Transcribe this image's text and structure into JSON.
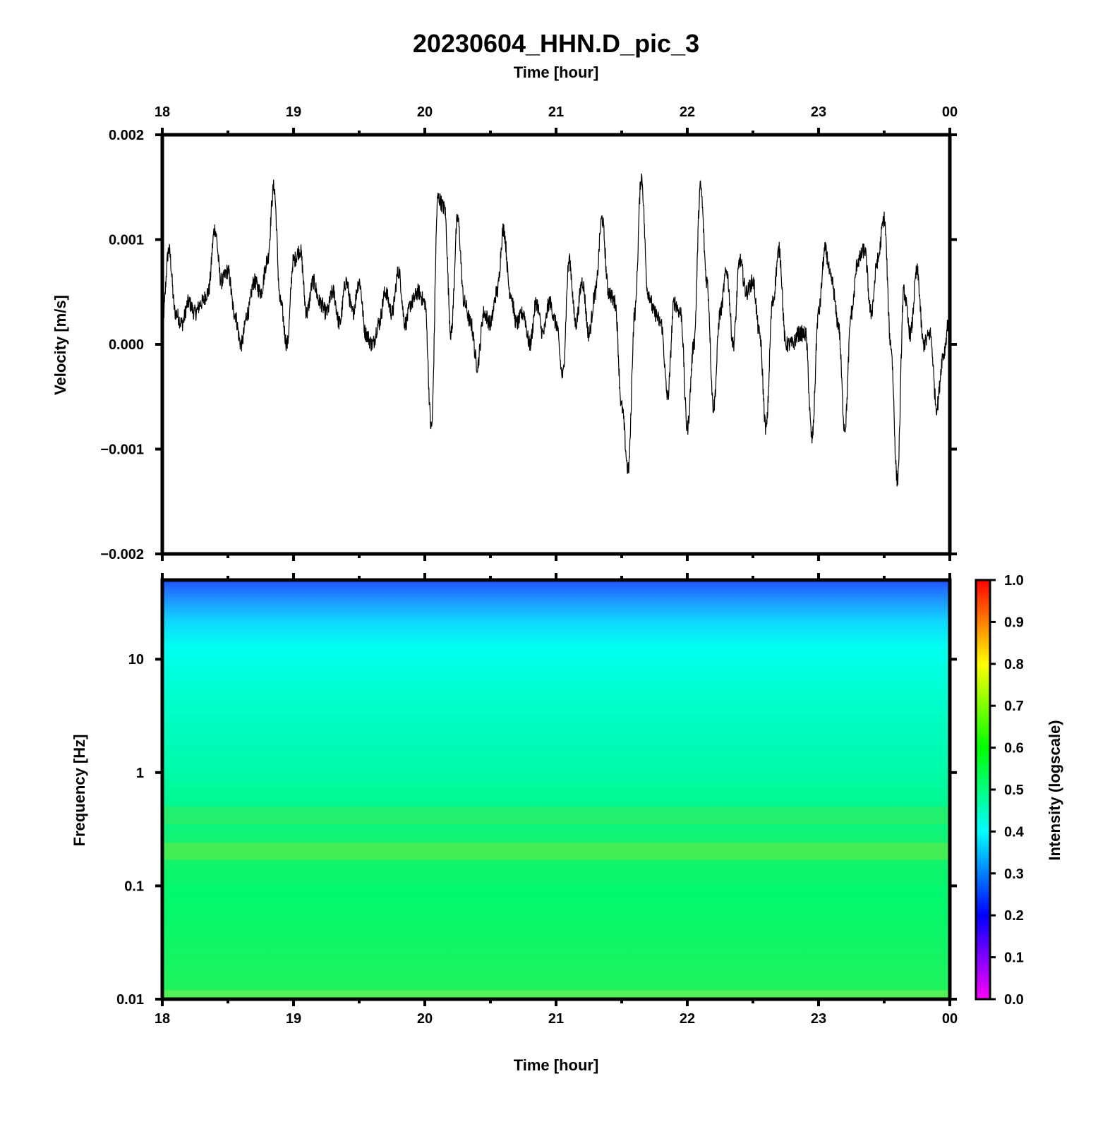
{
  "title": "20230604_HHN.D_pic_3",
  "top_axis_label": "Time [hour]",
  "bottom_axis_label": "Time [hour]",
  "velocity_ylabel": "Velocity [m/s]",
  "frequency_ylabel": "Frequency [Hz]",
  "colorbar_label": "Intensity (logscale)",
  "x_tick_labels": [
    "18",
    "19",
    "20",
    "21",
    "22",
    "23",
    "00"
  ],
  "velocity_tick_labels": [
    "0.002",
    "0.001",
    "0.000",
    "−0.001",
    "−0.002"
  ],
  "frequency_tick_labels": [
    "10",
    "1",
    "0.1",
    "0.01"
  ],
  "colorbar_tick_labels": [
    "1.0",
    "0.9",
    "0.8",
    "0.7",
    "0.6",
    "0.5",
    "0.4",
    "0.3",
    "0.2",
    "0.1",
    "0.0"
  ],
  "chart_data": [
    {
      "type": "line",
      "title": "20230604_HHN.D_pic_3",
      "xlabel": "Time [hour]",
      "ylabel": "Velocity [m/s]",
      "xlim": [
        18,
        24
      ],
      "ylim": [
        -0.002,
        0.002
      ],
      "x_ticks": [
        18,
        19,
        20,
        21,
        22,
        23,
        24
      ],
      "y_ticks": [
        0.002,
        0.001,
        0.0,
        -0.001,
        -0.002
      ],
      "grid": false,
      "x": [
        18.0,
        18.05,
        18.1,
        18.15,
        18.2,
        18.25,
        18.3,
        18.35,
        18.4,
        18.45,
        18.5,
        18.55,
        18.6,
        18.65,
        18.7,
        18.75,
        18.8,
        18.85,
        18.9,
        18.95,
        19.0,
        19.05,
        19.1,
        19.15,
        19.2,
        19.25,
        19.3,
        19.35,
        19.4,
        19.45,
        19.5,
        19.55,
        19.6,
        19.65,
        19.7,
        19.75,
        19.8,
        19.85,
        19.9,
        19.95,
        20.0,
        20.05,
        20.1,
        20.15,
        20.2,
        20.25,
        20.3,
        20.35,
        20.4,
        20.45,
        20.5,
        20.55,
        20.6,
        20.65,
        20.7,
        20.75,
        20.8,
        20.85,
        20.9,
        20.95,
        21.0,
        21.05,
        21.1,
        21.15,
        21.2,
        21.25,
        21.3,
        21.35,
        21.4,
        21.45,
        21.5,
        21.55,
        21.6,
        21.65,
        21.7,
        21.75,
        21.8,
        21.85,
        21.9,
        21.95,
        22.0,
        22.05,
        22.1,
        22.15,
        22.2,
        22.25,
        22.3,
        22.35,
        22.4,
        22.45,
        22.5,
        22.55,
        22.6,
        22.65,
        22.7,
        22.75,
        22.8,
        22.85,
        22.9,
        22.95,
        23.0,
        23.05,
        23.1,
        23.15,
        23.2,
        23.25,
        23.3,
        23.35,
        23.4,
        23.45,
        23.5,
        23.55,
        23.6,
        23.65,
        23.7,
        23.75,
        23.8,
        23.85,
        23.9,
        23.95,
        24.0
      ],
      "y": [
        0.0002,
        0.0009,
        0.0003,
        0.0002,
        0.0004,
        0.0003,
        0.0004,
        0.0005,
        0.0011,
        0.0006,
        0.0007,
        0.0003,
        0.0,
        0.0003,
        0.0006,
        0.0005,
        0.0008,
        0.0015,
        0.0004,
        0.0,
        0.0008,
        0.0009,
        0.0003,
        0.0006,
        0.0004,
        0.0003,
        0.0005,
        0.0002,
        0.0006,
        0.0003,
        0.0006,
        0.0001,
        0.0,
        0.0002,
        0.0005,
        0.0003,
        0.0007,
        0.0002,
        0.0004,
        0.0005,
        0.0004,
        -0.0008,
        0.0014,
        0.0013,
        0.0001,
        0.0012,
        0.0004,
        0.0002,
        -0.0002,
        0.0003,
        0.0002,
        0.0005,
        0.0011,
        0.0005,
        0.0002,
        0.0003,
        0.0,
        0.0004,
        0.0001,
        0.0004,
        0.0002,
        -0.0003,
        0.0008,
        0.0002,
        0.0006,
        0.0001,
        0.0005,
        0.0012,
        0.0005,
        0.0004,
        -0.0006,
        -0.0012,
        0.0003,
        0.0016,
        0.0005,
        0.0003,
        0.0002,
        -0.0005,
        0.0004,
        0.0003,
        -0.0008,
        0.0,
        0.0015,
        0.0006,
        -0.0006,
        0.0003,
        0.0007,
        0.0,
        0.0008,
        0.0005,
        0.0006,
        0.0001,
        -0.0008,
        0.0004,
        0.0009,
        0.0,
        0.0,
        0.0001,
        0.0001,
        -0.0009,
        0.0003,
        0.0009,
        0.0006,
        0.0002,
        -0.0008,
        0.0003,
        0.0008,
        0.0009,
        0.0003,
        0.0008,
        0.0012,
        0.0,
        -0.0013,
        0.0005,
        0.0001,
        0.0007,
        0.0,
        0.0001,
        -0.0006,
        -0.0001,
        0.0003
      ]
    },
    {
      "type": "heatmap",
      "xlabel": "Time [hour]",
      "ylabel": "Frequency [Hz]",
      "xlim": [
        18,
        24
      ],
      "ylim": [
        0.01,
        50
      ],
      "y_scale": "log",
      "y_ticks": [
        10,
        1,
        0.1,
        0.01
      ],
      "colorbar": {
        "label": "Intensity (logscale)",
        "range": [
          0.0,
          1.0
        ],
        "ticks": [
          1.0,
          0.9,
          0.8,
          0.7,
          0.6,
          0.5,
          0.4,
          0.3,
          0.2,
          0.1,
          0.0
        ],
        "colormap": [
          "#ff00ff",
          "#0000ff",
          "#00ffff",
          "#00ff00",
          "#ffff00",
          "#ff0000"
        ]
      },
      "intensity_profile": [
        {
          "frequency": 50,
          "intensity": 0.3
        },
        {
          "frequency": 30,
          "intensity": 0.35
        },
        {
          "frequency": 20,
          "intensity": 0.4
        },
        {
          "frequency": 10,
          "intensity": 0.43
        },
        {
          "frequency": 1,
          "intensity": 0.5
        },
        {
          "frequency": 0.4,
          "intensity": 0.52
        },
        {
          "frequency": 0.2,
          "intensity": 0.55
        },
        {
          "frequency": 0.1,
          "intensity": 0.53
        },
        {
          "frequency": 0.01,
          "intensity": 0.58
        }
      ]
    }
  ]
}
